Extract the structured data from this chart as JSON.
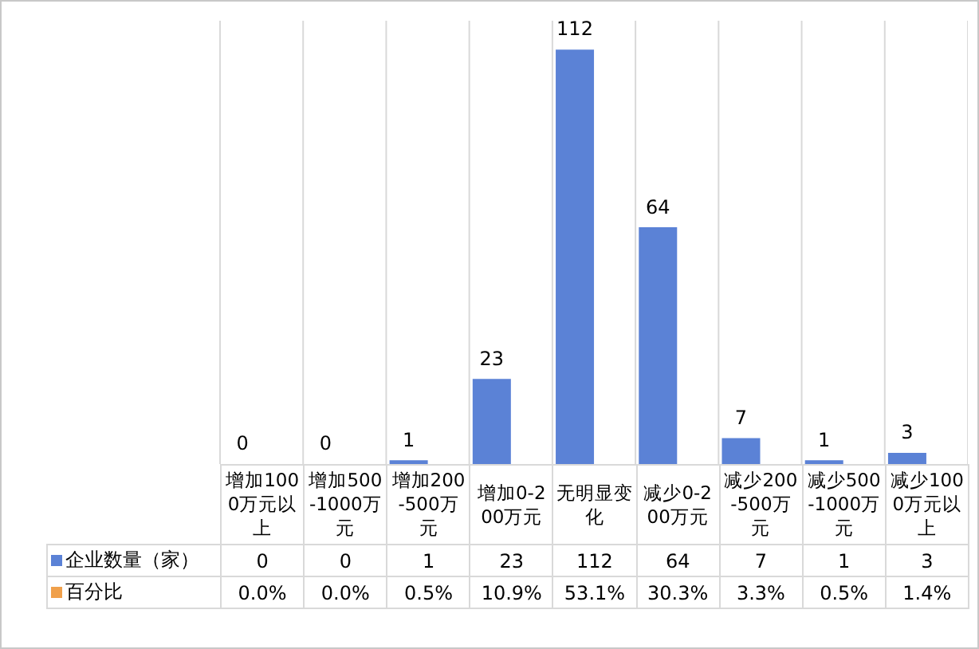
{
  "chart_data": {
    "type": "bar",
    "categories": [
      "增加1000万元以上",
      "增加500-1000万元",
      "增加200-500万元",
      "增加0-200万元",
      "无明显变化",
      "减少0-200万元",
      "减少200-500万元",
      "减少500-1000万元",
      "减少1000万元以上"
    ],
    "series": [
      {
        "name": "企业数量（家）",
        "color": "#5b82d6",
        "values": [
          0,
          0,
          1,
          23,
          112,
          64,
          7,
          1,
          3
        ],
        "value_labels": [
          "0",
          "0",
          "1",
          "23",
          "112",
          "64",
          "7",
          "1",
          "3"
        ]
      },
      {
        "name": "百分比",
        "color": "#f0a04b",
        "values": [
          null,
          null,
          null,
          null,
          null,
          null,
          null,
          null,
          null
        ],
        "value_labels": [
          "0.0%",
          "0.0%",
          "0.5%",
          "10.9%",
          "53.1%",
          "30.3%",
          "3.3%",
          "0.5%",
          "1.4%"
        ]
      }
    ],
    "grid": "x",
    "legend": "bottom left"
  }
}
